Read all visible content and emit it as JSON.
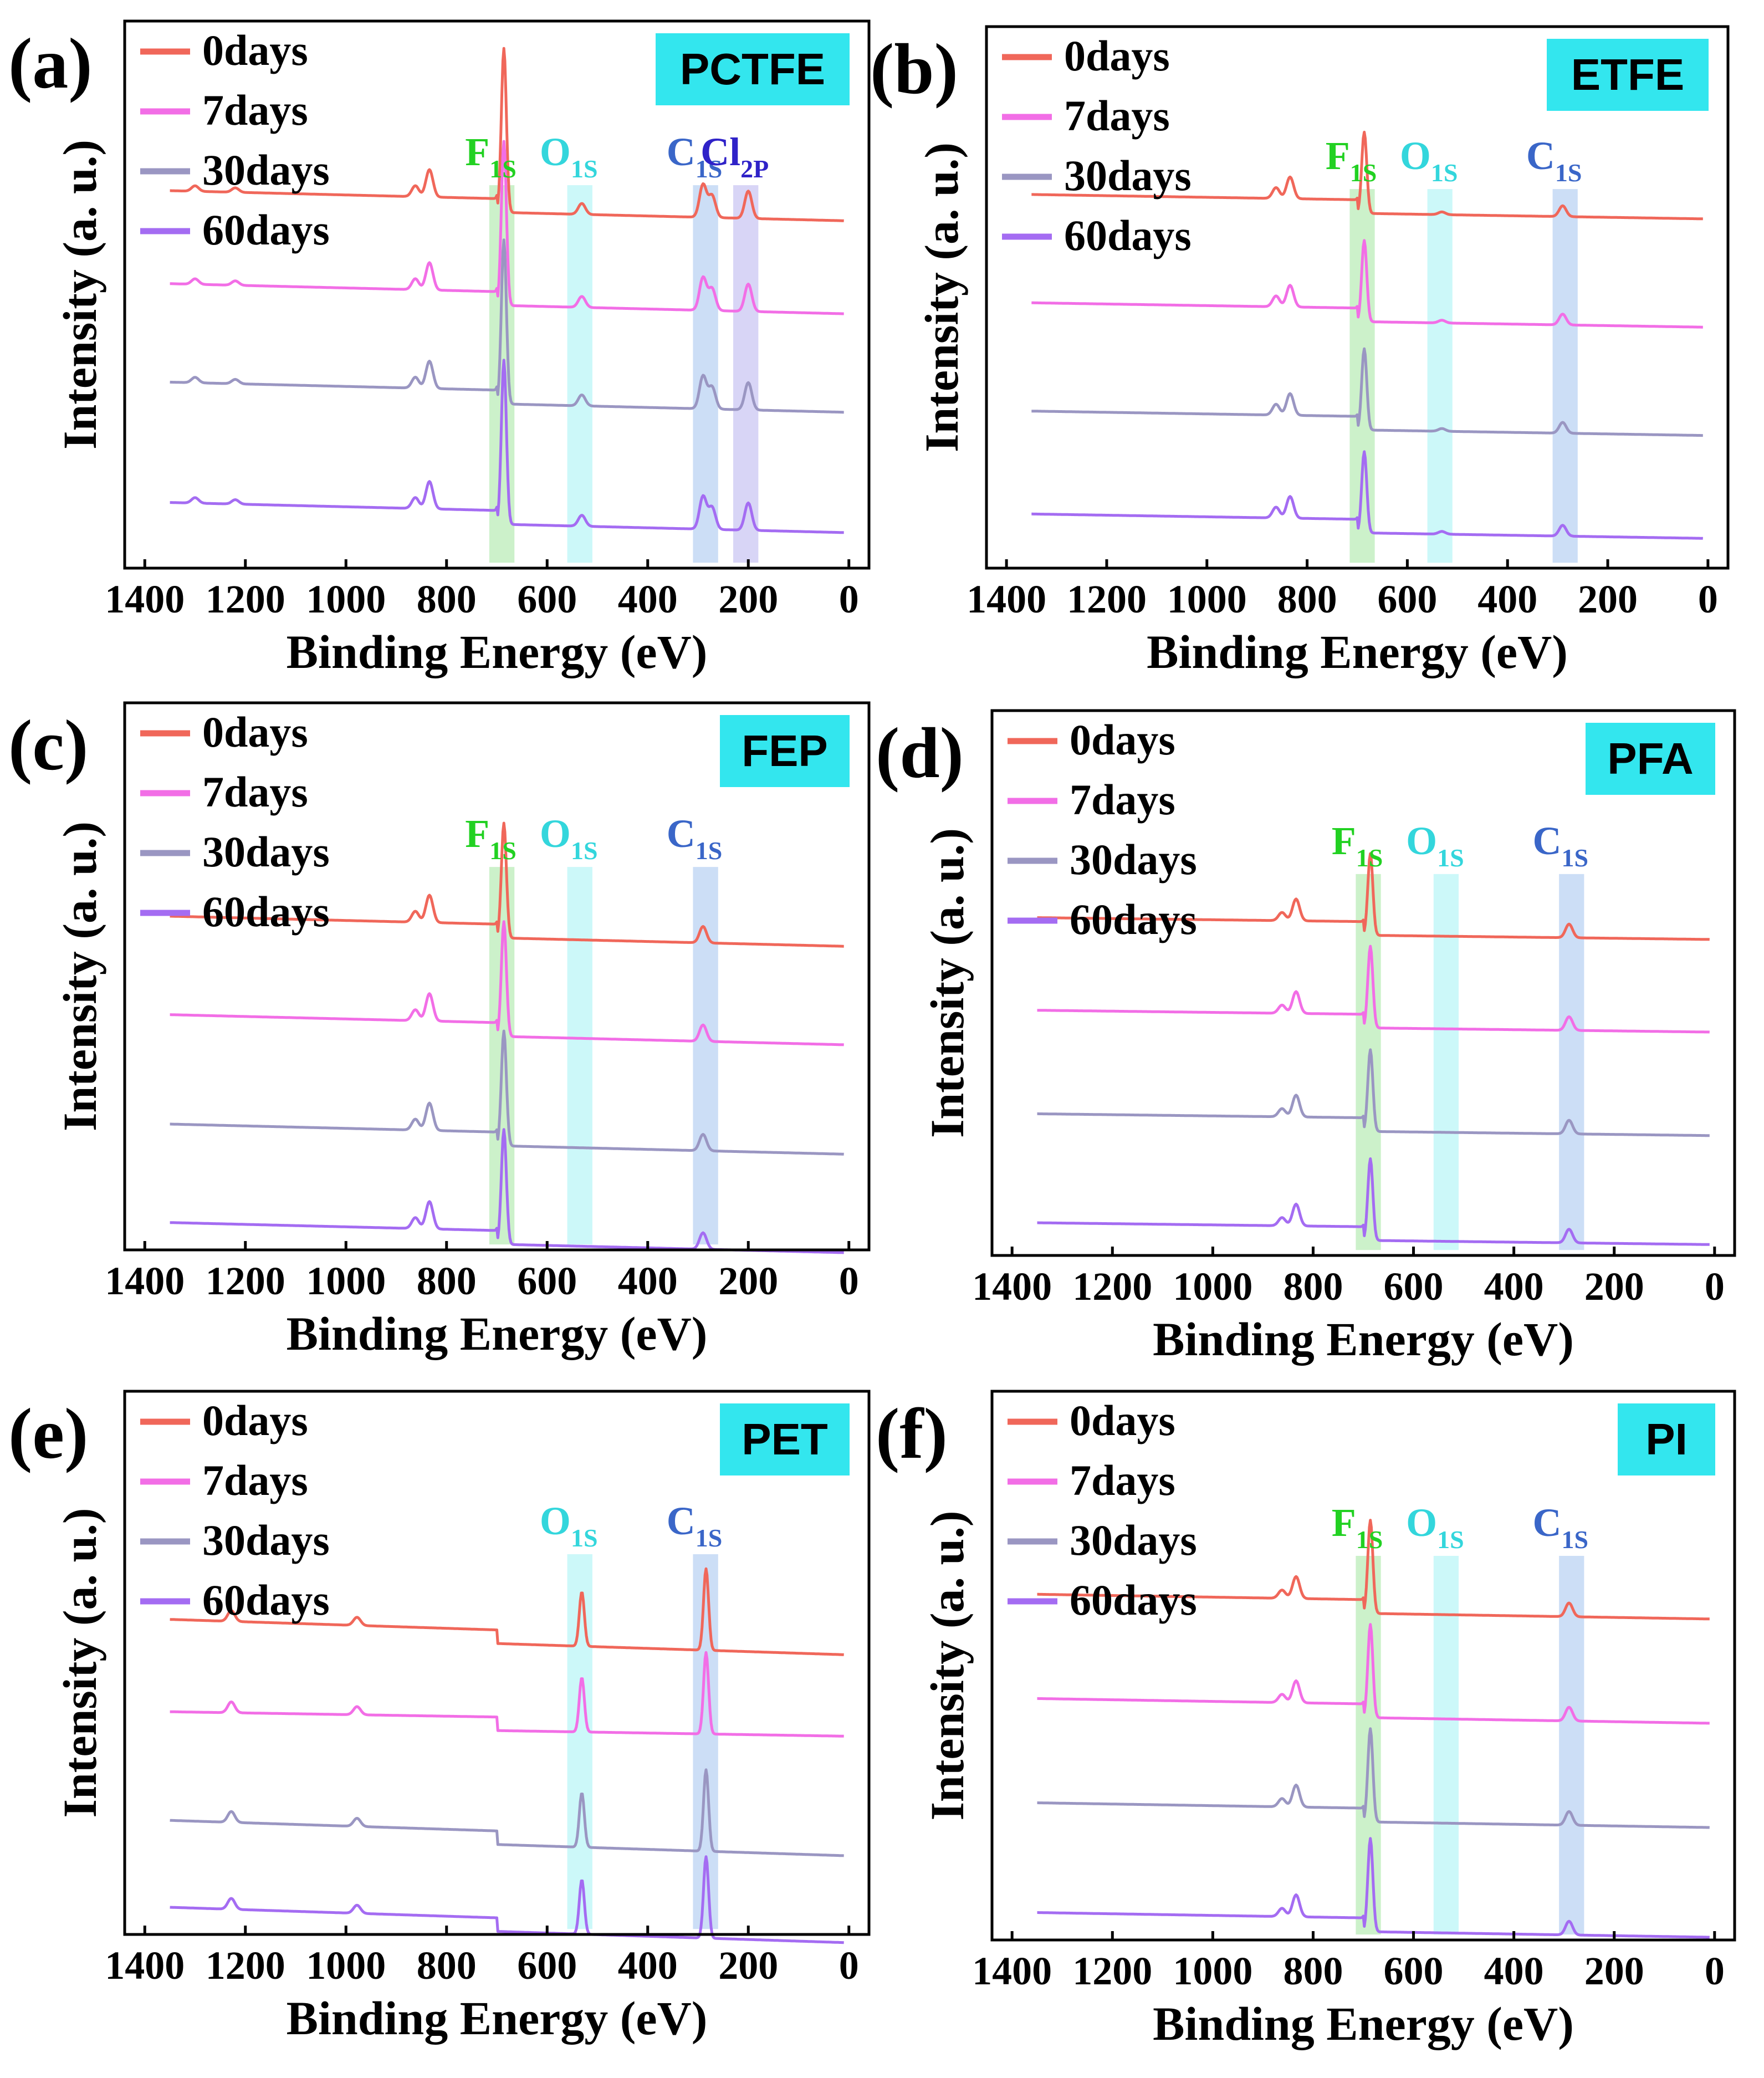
{
  "figure": {
    "xlabel": "Binding Energy (eV)",
    "ylabel": "Intensity (a. u.)",
    "tag_color": "#33e6ee"
  },
  "chart_data": [
    {
      "type": "line",
      "panel_label": "(a)",
      "title": "PCTFE",
      "xlabel": "Binding Energy (eV)",
      "ylabel": "Intensity (a. u.)",
      "xlim": [
        1400,
        0
      ],
      "x_ticks": [
        "1400",
        "1200",
        "1000",
        "800",
        "600",
        "400",
        "200",
        "0"
      ],
      "series": [
        {
          "name": "0days",
          "color": "#f0675a",
          "offset": 0.69,
          "tilt": 0.03
        },
        {
          "name": "7days",
          "color": "#f26ee6",
          "offset": 0.52,
          "tilt": 0.03
        },
        {
          "name": "30days",
          "color": "#9a96c2",
          "offset": 0.34,
          "tilt": 0.03
        },
        {
          "name": "60days",
          "color": "#a46cf2",
          "offset": 0.12,
          "tilt": 0.03
        }
      ],
      "peaks": [
        {
          "center": 1300,
          "height": 0.01
        },
        {
          "center": 1220,
          "height": 0.008
        },
        {
          "center": 862,
          "height": 0.02
        },
        {
          "center": 834,
          "height": 0.05
        },
        {
          "center": 686,
          "height": 0.3
        },
        {
          "center": 531,
          "height": 0.02
        },
        {
          "center": 290,
          "height": 0.06
        },
        {
          "center": 272,
          "height": 0.04
        },
        {
          "center": 200,
          "height": 0.05
        }
      ],
      "regions": [
        {
          "label": "F",
          "sub": "1S",
          "from": 715,
          "to": 665,
          "color": "#8ee08a",
          "label_color": "#22d122"
        },
        {
          "label": "O",
          "sub": "1S",
          "from": 560,
          "to": 510,
          "color": "#8ef0f2",
          "label_color": "#33d6dc"
        },
        {
          "label": "C",
          "sub": "1S",
          "from": 310,
          "to": 260,
          "color": "#8fb5ec",
          "label_color": "#3a66c8"
        },
        {
          "label": "Cl",
          "sub": "2P",
          "from": 230,
          "to": 180,
          "color": "#a9a2ec",
          "label_color": "#2f22c8"
        }
      ]
    },
    {
      "type": "line",
      "panel_label": "(b)",
      "title": "ETFE",
      "xlabel": "Binding Energy (eV)",
      "ylabel": "Intensity (a. u.)",
      "xlim": [
        1400,
        0
      ],
      "x_ticks": [
        "1400",
        "1200",
        "1000",
        "800",
        "600",
        "400",
        "200",
        "0"
      ],
      "series": [
        {
          "name": "0days",
          "color": "#f0675a",
          "offset": 0.69,
          "tilt": 0.02
        },
        {
          "name": "7days",
          "color": "#f26ee6",
          "offset": 0.49,
          "tilt": 0.02
        },
        {
          "name": "30days",
          "color": "#9a96c2",
          "offset": 0.29,
          "tilt": 0.02
        },
        {
          "name": "60days",
          "color": "#a46cf2",
          "offset": 0.1,
          "tilt": 0.02
        }
      ],
      "peaks": [
        {
          "center": 862,
          "height": 0.02
        },
        {
          "center": 834,
          "height": 0.04
        },
        {
          "center": 686,
          "height": 0.15
        },
        {
          "center": 531,
          "height": 0.005
        },
        {
          "center": 290,
          "height": 0.02
        }
      ],
      "regions": [
        {
          "label": "F",
          "sub": "1S",
          "from": 715,
          "to": 665,
          "color": "#8ee08a",
          "label_color": "#22d122"
        },
        {
          "label": "O",
          "sub": "1S",
          "from": 560,
          "to": 510,
          "color": "#8ef0f2",
          "label_color": "#33d6dc"
        },
        {
          "label": "C",
          "sub": "1S",
          "from": 310,
          "to": 260,
          "color": "#8fb5ec",
          "label_color": "#3a66c8"
        }
      ]
    },
    {
      "type": "line",
      "panel_label": "(c)",
      "title": "FEP",
      "xlabel": "Binding Energy (eV)",
      "ylabel": "Intensity (a. u.)",
      "xlim": [
        1400,
        0
      ],
      "x_ticks": [
        "1400",
        "1200",
        "1000",
        "800",
        "600",
        "400",
        "200",
        "0"
      ],
      "series": [
        {
          "name": "0days",
          "color": "#f0675a",
          "offset": 0.61,
          "tilt": 0.03
        },
        {
          "name": "7days",
          "color": "#f26ee6",
          "offset": 0.43,
          "tilt": 0.03
        },
        {
          "name": "30days",
          "color": "#9a96c2",
          "offset": 0.23,
          "tilt": 0.03
        },
        {
          "name": "60days",
          "color": "#a46cf2",
          "offset": 0.05,
          "tilt": 0.03
        }
      ],
      "peaks": [
        {
          "center": 862,
          "height": 0.02
        },
        {
          "center": 834,
          "height": 0.05
        },
        {
          "center": 686,
          "height": 0.21
        },
        {
          "center": 290,
          "height": 0.03
        }
      ],
      "regions": [
        {
          "label": "F",
          "sub": "1S",
          "from": 715,
          "to": 665,
          "color": "#8ee08a",
          "label_color": "#22d122"
        },
        {
          "label": "O",
          "sub": "1S",
          "from": 560,
          "to": 510,
          "color": "#8ef0f2",
          "label_color": "#33d6dc"
        },
        {
          "label": "C",
          "sub": "1S",
          "from": 310,
          "to": 260,
          "color": "#8fb5ec",
          "label_color": "#3a66c8"
        }
      ]
    },
    {
      "type": "line",
      "panel_label": "(d)",
      "title": "PFA",
      "xlabel": "Binding Energy (eV)",
      "ylabel": "Intensity (a. u.)",
      "xlim": [
        1400,
        0
      ],
      "x_ticks": [
        "1400",
        "1200",
        "1000",
        "800",
        "600",
        "400",
        "200",
        "0"
      ],
      "series": [
        {
          "name": "0days",
          "color": "#f0675a",
          "offset": 0.62,
          "tilt": 0.015
        },
        {
          "name": "7days",
          "color": "#f26ee6",
          "offset": 0.45,
          "tilt": 0.015
        },
        {
          "name": "30days",
          "color": "#9a96c2",
          "offset": 0.26,
          "tilt": 0.015
        },
        {
          "name": "60days",
          "color": "#a46cf2",
          "offset": 0.06,
          "tilt": 0.015
        }
      ],
      "peaks": [
        {
          "center": 862,
          "height": 0.015
        },
        {
          "center": 834,
          "height": 0.04
        },
        {
          "center": 686,
          "height": 0.15
        },
        {
          "center": 290,
          "height": 0.025
        }
      ],
      "regions": [
        {
          "label": "F",
          "sub": "1S",
          "from": 715,
          "to": 665,
          "color": "#8ee08a",
          "label_color": "#22d122"
        },
        {
          "label": "O",
          "sub": "1S",
          "from": 560,
          "to": 510,
          "color": "#8ef0f2",
          "label_color": "#33d6dc"
        },
        {
          "label": "C",
          "sub": "1S",
          "from": 310,
          "to": 260,
          "color": "#8fb5ec",
          "label_color": "#3a66c8"
        }
      ]
    },
    {
      "type": "line",
      "panel_label": "(e)",
      "title": "PET",
      "xlabel": "Binding Energy (eV)",
      "ylabel": "Intensity (a. u.)",
      "xlim": [
        1400,
        0
      ],
      "x_ticks": [
        "1400",
        "1200",
        "1000",
        "800",
        "600",
        "400",
        "200",
        "0"
      ],
      "series": [
        {
          "name": "0days",
          "color": "#f0675a",
          "offset": 0.58,
          "tilt": 0.04
        },
        {
          "name": "7days",
          "color": "#f26ee6",
          "offset": 0.41,
          "tilt": 0.02
        },
        {
          "name": "30days",
          "color": "#9a96c2",
          "offset": 0.21,
          "tilt": 0.04
        },
        {
          "name": "60days",
          "color": "#a46cf2",
          "offset": 0.05,
          "tilt": 0.04
        }
      ],
      "peaks": [
        {
          "center": 1228,
          "height": 0.02
        },
        {
          "center": 978,
          "height": 0.015
        },
        {
          "center": 531,
          "height": 0.1
        },
        {
          "center": 284,
          "height": 0.15
        }
      ],
      "regions": [
        {
          "label": "O",
          "sub": "1S",
          "from": 560,
          "to": 510,
          "color": "#8ef0f2",
          "label_color": "#33d6dc"
        },
        {
          "label": "C",
          "sub": "1S",
          "from": 310,
          "to": 260,
          "color": "#8fb5ec",
          "label_color": "#3a66c8"
        }
      ]
    },
    {
      "type": "line",
      "panel_label": "(f)",
      "title": "PI",
      "xlabel": "Binding Energy (eV)",
      "ylabel": "Intensity (a. u.)",
      "xlim": [
        1400,
        0
      ],
      "x_ticks": [
        "1400",
        "1200",
        "1000",
        "800",
        "600",
        "400",
        "200",
        "0"
      ],
      "series": [
        {
          "name": "0days",
          "color": "#f0675a",
          "offset": 0.63,
          "tilt": 0.02
        },
        {
          "name": "7days",
          "color": "#f26ee6",
          "offset": 0.44,
          "tilt": 0.02
        },
        {
          "name": "30days",
          "color": "#9a96c2",
          "offset": 0.25,
          "tilt": 0.02
        },
        {
          "name": "60days",
          "color": "#a46cf2",
          "offset": 0.05,
          "tilt": 0.02
        }
      ],
      "peaks": [
        {
          "center": 862,
          "height": 0.015
        },
        {
          "center": 834,
          "height": 0.04
        },
        {
          "center": 686,
          "height": 0.17
        },
        {
          "center": 290,
          "height": 0.025
        }
      ],
      "regions": [
        {
          "label": "F",
          "sub": "1S",
          "from": 715,
          "to": 665,
          "color": "#8ee08a",
          "label_color": "#22d122"
        },
        {
          "label": "O",
          "sub": "1S",
          "from": 560,
          "to": 510,
          "color": "#8ef0f2",
          "label_color": "#33d6dc"
        },
        {
          "label": "C",
          "sub": "1S",
          "from": 310,
          "to": 260,
          "color": "#8fb5ec",
          "label_color": "#3a66c8"
        }
      ]
    }
  ]
}
